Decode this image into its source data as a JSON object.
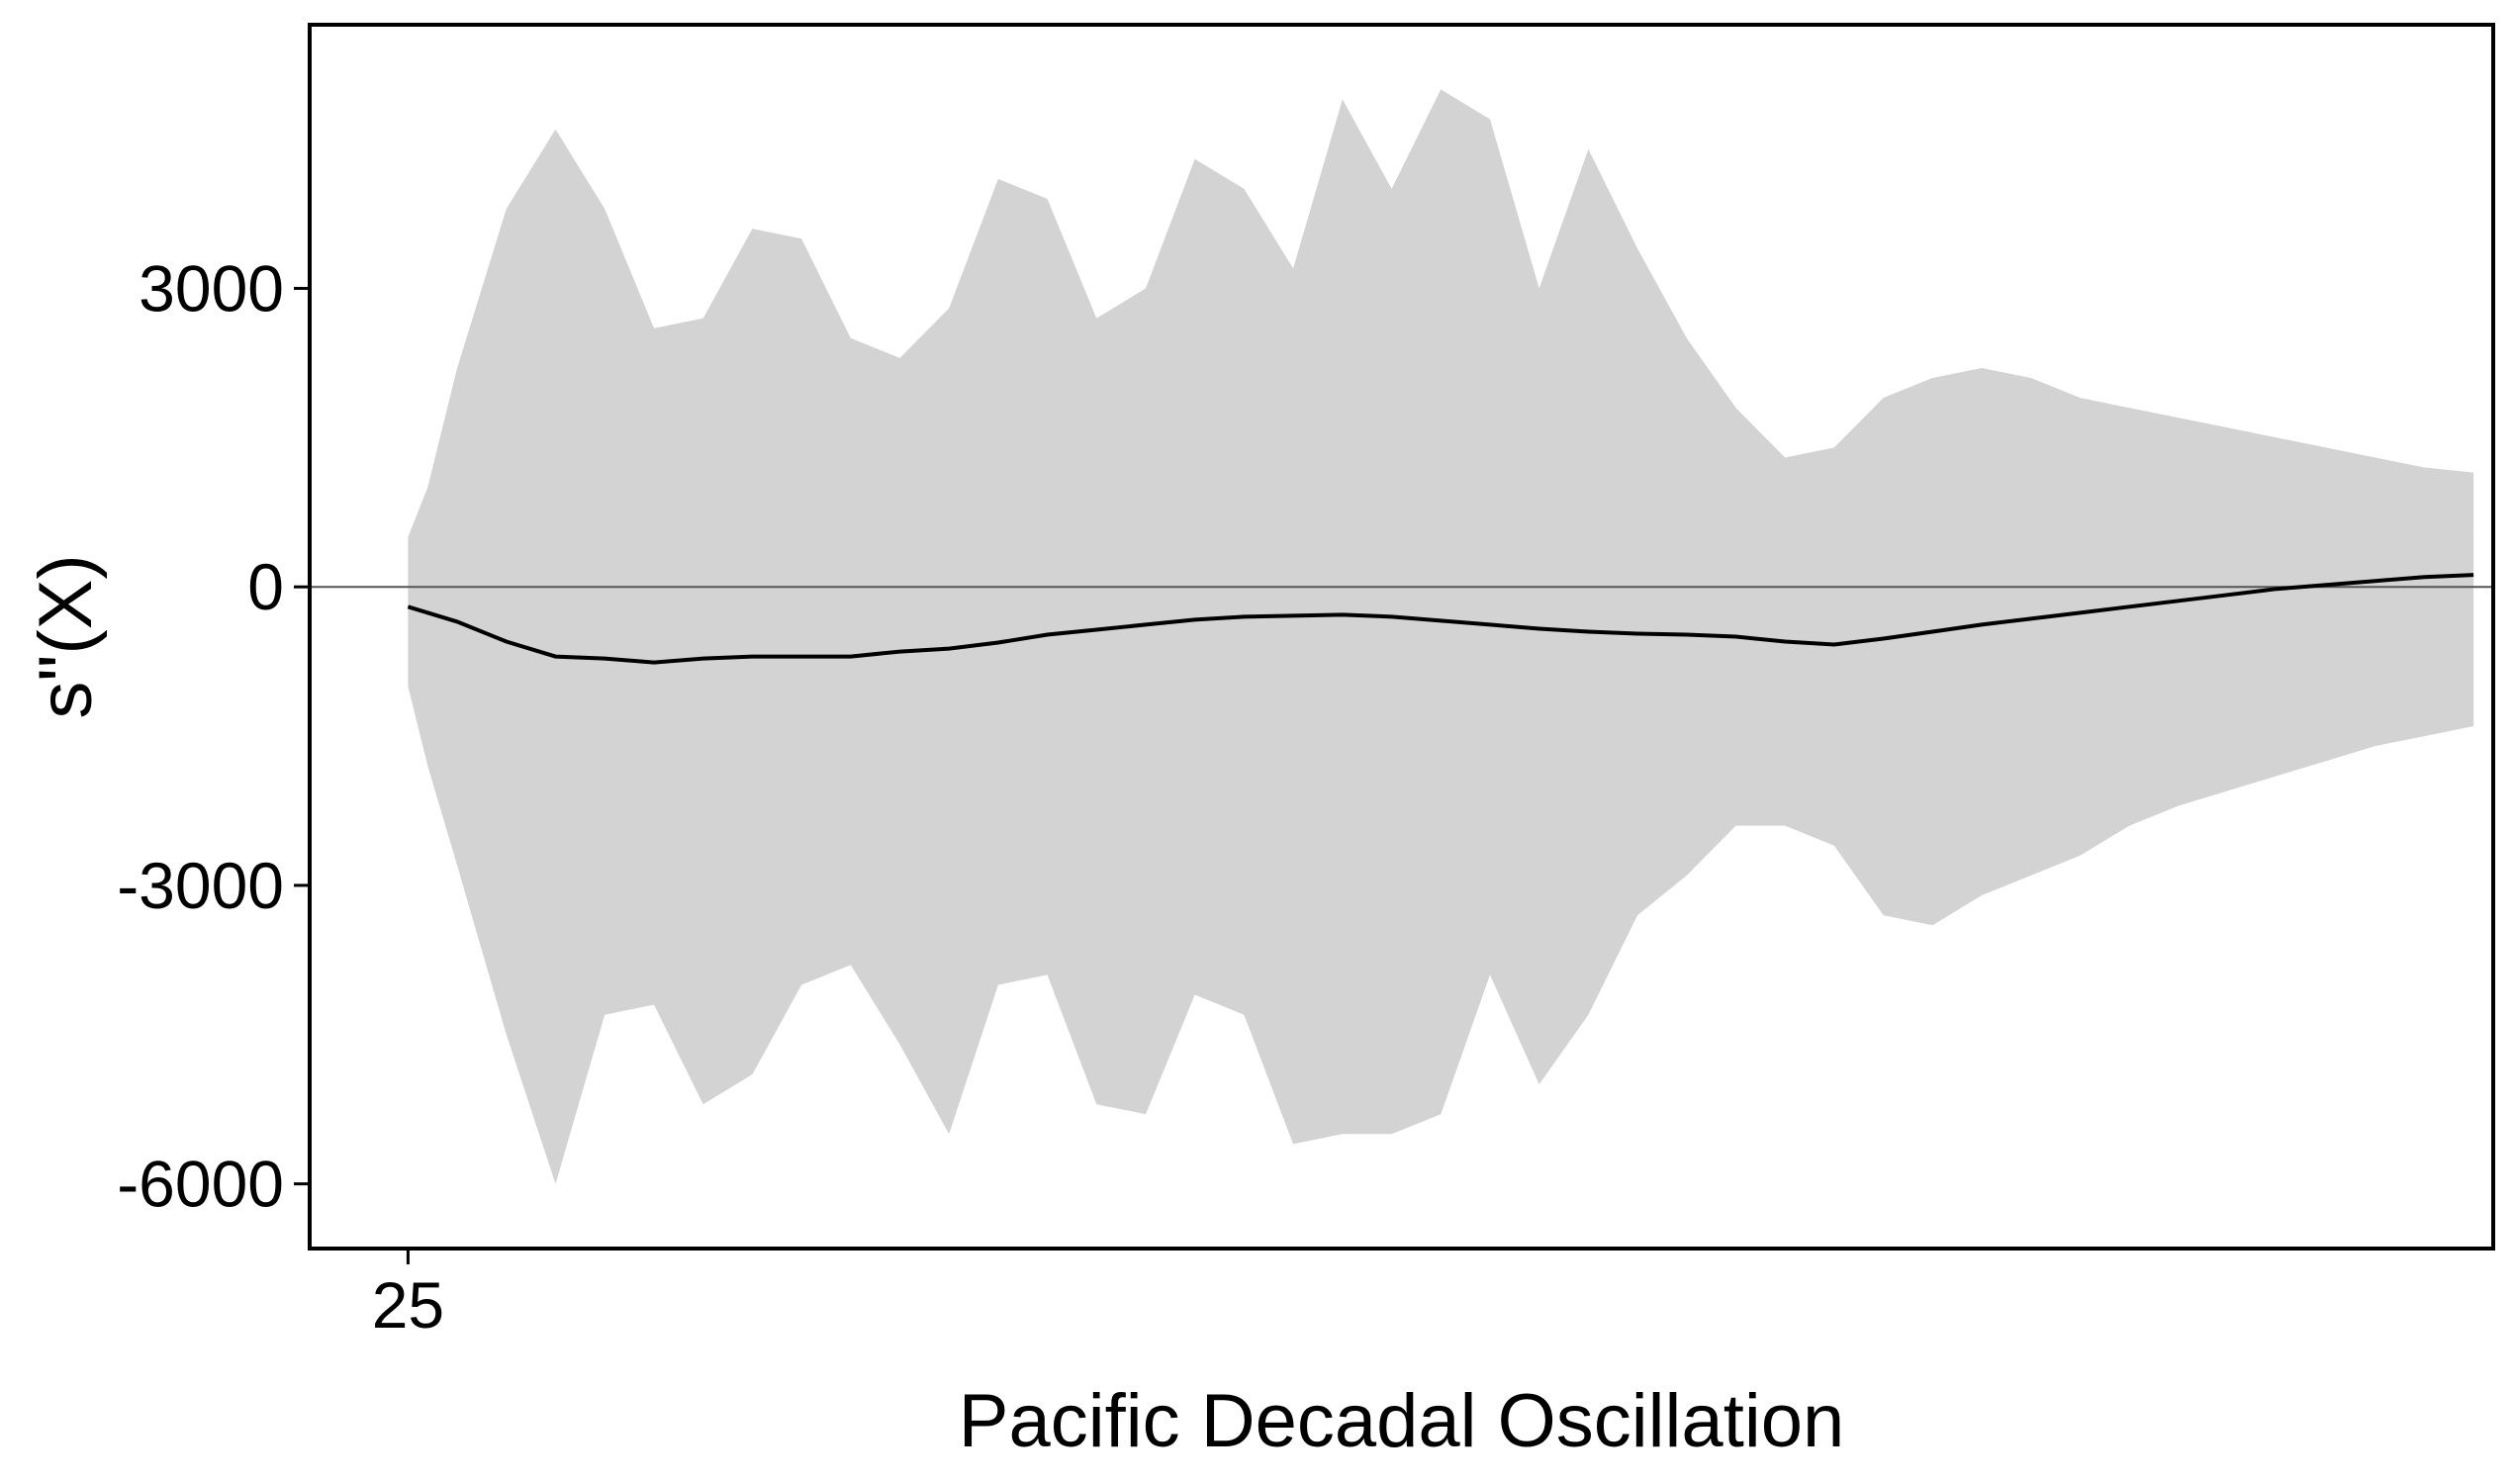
{
  "chart_data": {
    "type": "line",
    "title": "",
    "xlabel": "Pacific Decadal Oscillation",
    "ylabel": "s\"(X)",
    "x_ticks": [
      "25"
    ],
    "y_ticks": [
      3000,
      0,
      -3000,
      -6000
    ],
    "ylim": [
      -6650,
      5650
    ],
    "xlim": [
      24,
      46.2
    ],
    "grid": false,
    "legend": "none",
    "zero_line": true,
    "colors": {
      "line": "#000000",
      "band": "#d3d3d3",
      "zero": "#555555"
    },
    "series": [
      {
        "role": "estimate",
        "x": [
          25,
          25.5,
          26,
          26.5,
          27,
          27.5,
          28,
          28.5,
          29,
          29.5,
          30,
          30.5,
          31,
          31.5,
          32,
          32.5,
          33,
          33.5,
          34,
          34.5,
          35,
          35.5,
          36,
          36.5,
          37,
          37.5,
          38,
          38.5,
          39,
          39.5,
          40,
          40.5,
          41,
          41.5,
          42,
          42.5,
          43,
          43.5,
          44,
          44.5,
          45,
          45.5,
          46
        ],
        "values": [
          -200,
          -350,
          -550,
          -700,
          -720,
          -760,
          -720,
          -700,
          -700,
          -700,
          -650,
          -620,
          -560,
          -480,
          -430,
          -380,
          -330,
          -300,
          -290,
          -280,
          -300,
          -340,
          -380,
          -420,
          -450,
          -470,
          -480,
          -500,
          -550,
          -580,
          -520,
          -450,
          -380,
          -320,
          -260,
          -200,
          -140,
          -80,
          -20,
          20,
          60,
          100,
          120
        ]
      },
      {
        "role": "upper_band",
        "x": [
          25,
          25.2,
          25.5,
          26,
          26.5,
          27,
          27.5,
          28,
          28.5,
          29,
          29.5,
          30,
          30.5,
          31,
          31.5,
          32,
          32.5,
          33,
          33.5,
          34,
          34.5,
          35,
          35.5,
          36,
          36.5,
          37,
          37.5,
          38,
          38.5,
          39,
          39.5,
          40,
          40.5,
          41,
          41.5,
          42,
          42.5,
          43,
          43.5,
          44,
          44.5,
          45,
          45.5,
          46
        ],
        "values": [
          500,
          1000,
          2200,
          3800,
          4600,
          3800,
          2600,
          2700,
          3600,
          3500,
          2500,
          2300,
          2800,
          4100,
          3900,
          2700,
          3000,
          4300,
          4000,
          3200,
          4900,
          4000,
          5000,
          4700,
          3000,
          4400,
          3400,
          2500,
          1800,
          1300,
          1400,
          1900,
          2100,
          2200,
          2100,
          1900,
          1800,
          1700,
          1600,
          1500,
          1400,
          1300,
          1200,
          1150
        ]
      },
      {
        "role": "lower_band",
        "x": [
          25,
          25.2,
          25.5,
          26,
          26.5,
          27,
          27.5,
          28,
          28.5,
          29,
          29.5,
          30,
          30.5,
          31,
          31.5,
          32,
          32.5,
          33,
          33.5,
          34,
          34.5,
          35,
          35.5,
          36,
          36.5,
          37,
          37.5,
          38,
          38.5,
          39,
          39.5,
          40,
          40.5,
          41,
          41.5,
          42,
          42.5,
          43,
          43.5,
          44,
          44.5,
          45,
          45.5,
          46
        ],
        "values": [
          -1000,
          -1800,
          -2800,
          -4500,
          -6000,
          -4300,
          -4200,
          -5200,
          -4900,
          -4000,
          -3800,
          -4600,
          -5500,
          -4000,
          -3900,
          -5200,
          -5300,
          -4100,
          -4300,
          -5600,
          -5500,
          -5500,
          -5300,
          -3900,
          -5000,
          -4300,
          -3300,
          -2900,
          -2400,
          -2400,
          -2600,
          -3300,
          -3400,
          -3100,
          -2900,
          -2700,
          -2400,
          -2200,
          -2050,
          -1900,
          -1750,
          -1600,
          -1500,
          -1400
        ]
      }
    ]
  }
}
